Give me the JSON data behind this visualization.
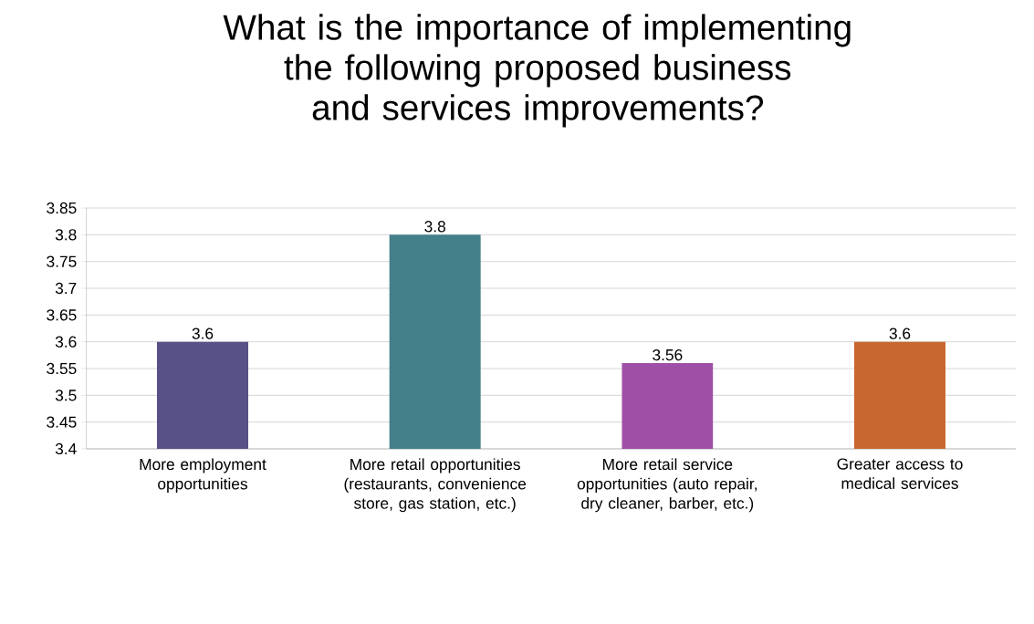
{
  "chart_data": {
    "type": "bar",
    "title": "What is the importance of implementing the following proposed business and services improvements?",
    "categories": [
      "More employment opportunities",
      "More retail opportunities (restaurants, convenience store, gas station, etc.)",
      "More retail service opportunities (auto repair, dry cleaner, barber, etc.)",
      "Greater access to medical services"
    ],
    "values": [
      3.6,
      3.8,
      3.56,
      3.6
    ],
    "colors": [
      "#575188",
      "#44808a",
      "#9f4fa5",
      "#c8672f"
    ],
    "ylim": [
      3.4,
      3.85
    ],
    "yticks": [
      3.4,
      3.45,
      3.5,
      3.55,
      3.6,
      3.65,
      3.7,
      3.75,
      3.8,
      3.85
    ],
    "grid": "y",
    "data_labels": true
  }
}
